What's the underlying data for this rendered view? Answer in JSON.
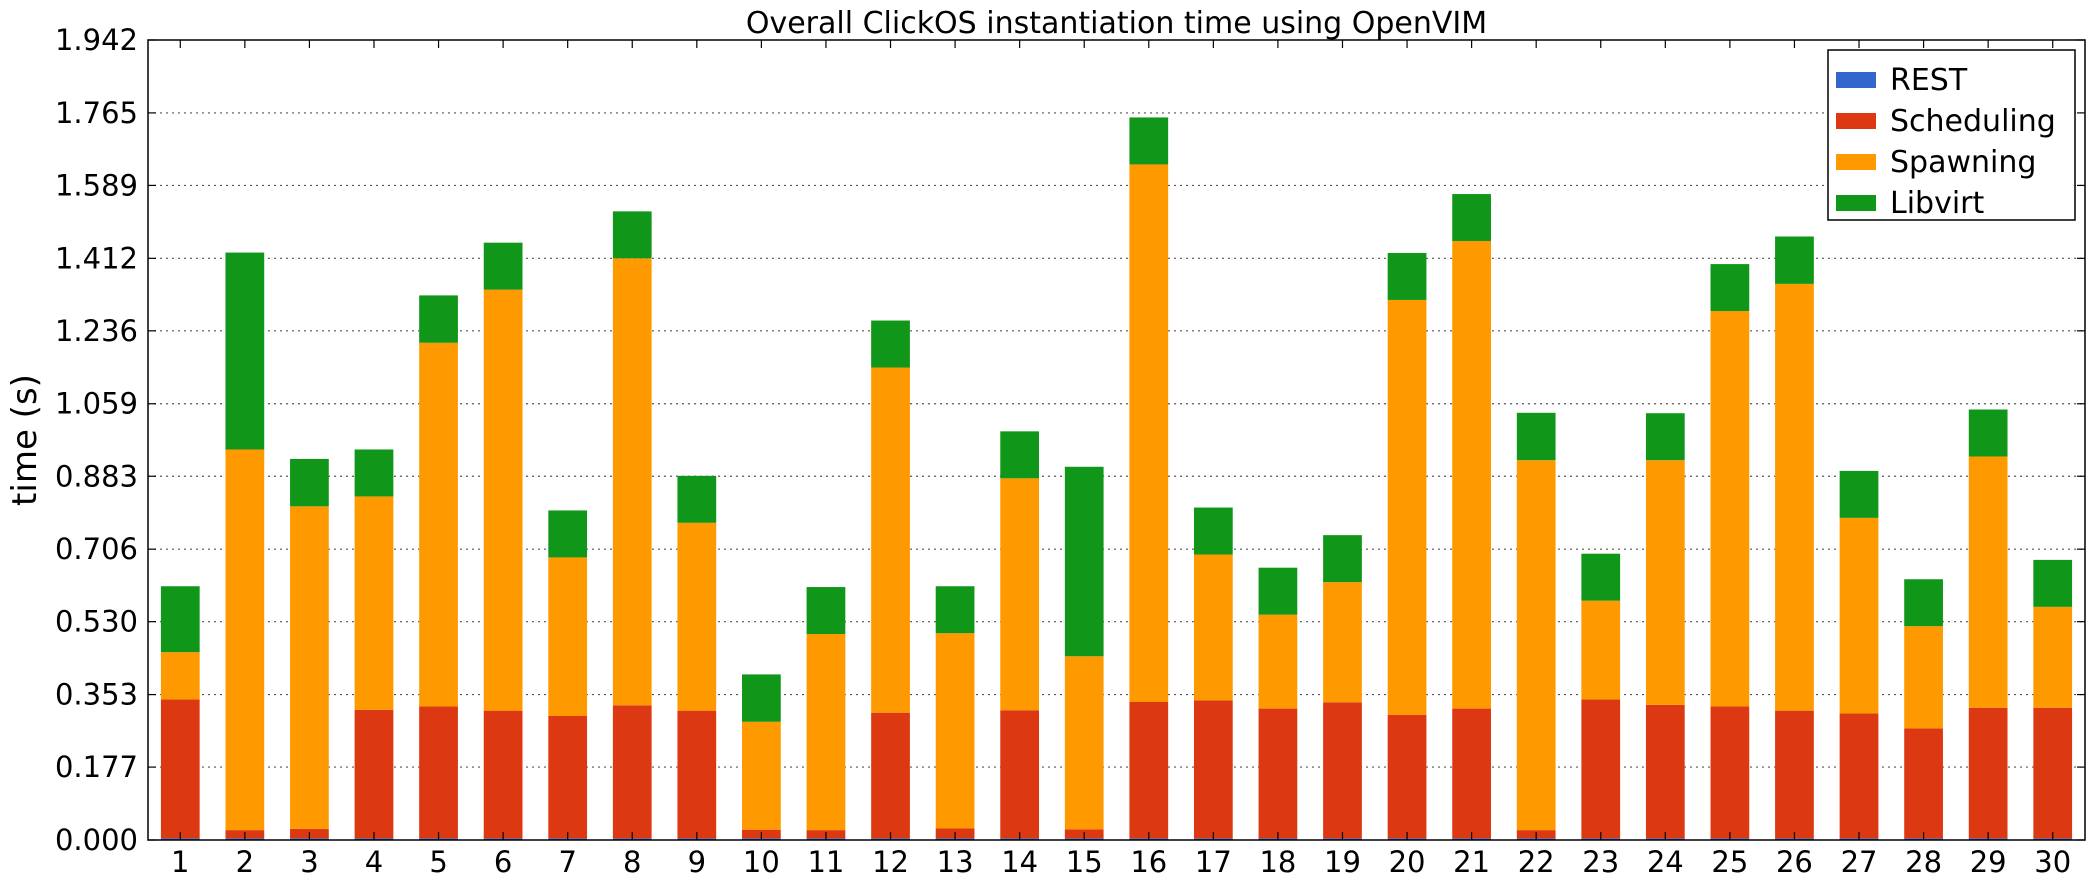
{
  "chart_data": {
    "type": "bar",
    "stacked": true,
    "title": "Overall ClickOS instantiation time using OpenVIM",
    "xlabel": "",
    "ylabel": "time (s)",
    "ylim": [
      0,
      1.942
    ],
    "yticks": [
      "0.000",
      "0.177",
      "0.353",
      "0.530",
      "0.706",
      "0.883",
      "1.059",
      "1.236",
      "1.412",
      "1.589",
      "1.765",
      "1.942"
    ],
    "grid": true,
    "legend_position": "top-right",
    "categories": [
      "1",
      "2",
      "3",
      "4",
      "5",
      "6",
      "7",
      "8",
      "9",
      "10",
      "11",
      "12",
      "13",
      "14",
      "15",
      "16",
      "17",
      "18",
      "19",
      "20",
      "21",
      "22",
      "23",
      "24",
      "25",
      "26",
      "27",
      "28",
      "29",
      "30"
    ],
    "series": [
      {
        "name": "REST",
        "color": "#3366cc",
        "values": [
          0.004,
          0.004,
          0.004,
          0.004,
          0.004,
          0.004,
          0.004,
          0.004,
          0.004,
          0.004,
          0.004,
          0.004,
          0.004,
          0.004,
          0.004,
          0.004,
          0.004,
          0.004,
          0.004,
          0.004,
          0.004,
          0.004,
          0.004,
          0.004,
          0.004,
          0.004,
          0.004,
          0.004,
          0.004,
          0.004
        ]
      },
      {
        "name": "Scheduling",
        "color": "#dc3912",
        "values": [
          0.337,
          0.02,
          0.023,
          0.312,
          0.32,
          0.31,
          0.297,
          0.323,
          0.31,
          0.021,
          0.02,
          0.305,
          0.024,
          0.311,
          0.022,
          0.331,
          0.335,
          0.315,
          0.33,
          0.3,
          0.315,
          0.02,
          0.337,
          0.324,
          0.32,
          0.31,
          0.303,
          0.267,
          0.317,
          0.317
        ]
      },
      {
        "name": "Spawning",
        "color": "#ff9900",
        "values": [
          0.115,
          0.924,
          0.783,
          0.518,
          0.883,
          1.022,
          0.385,
          1.085,
          0.456,
          0.262,
          0.476,
          0.838,
          0.474,
          0.563,
          0.42,
          1.305,
          0.354,
          0.228,
          0.292,
          1.007,
          1.135,
          0.898,
          0.24,
          0.594,
          0.96,
          1.036,
          0.475,
          0.248,
          0.61,
          0.245
        ]
      },
      {
        "name": "Libvirt",
        "color": "#109618",
        "values": [
          0.16,
          0.478,
          0.115,
          0.114,
          0.115,
          0.114,
          0.114,
          0.114,
          0.114,
          0.115,
          0.114,
          0.114,
          0.114,
          0.114,
          0.46,
          0.114,
          0.114,
          0.114,
          0.114,
          0.114,
          0.114,
          0.115,
          0.114,
          0.114,
          0.114,
          0.115,
          0.114,
          0.114,
          0.114,
          0.114
        ]
      }
    ]
  }
}
